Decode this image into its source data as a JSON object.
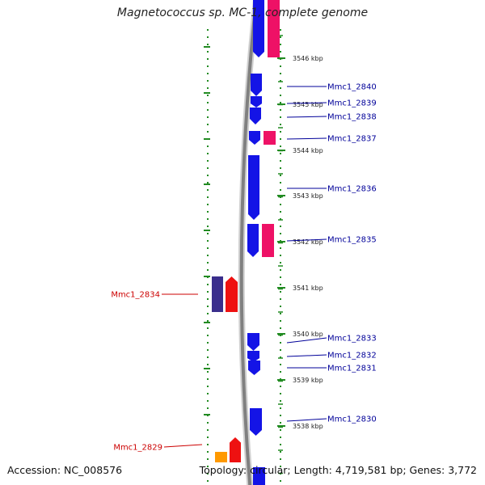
{
  "title": "Magnetococcus sp. MC-1, complete genome",
  "accession": "Accession: NC_008576",
  "topology": "Topology: circular; Length: 4,719,581 bp; Genes: 3,772",
  "colors": {
    "backbone": "#808080",
    "tick": "#228b22",
    "forward_gene": "#1414e6",
    "reverse_gene": "#ee1166",
    "highlight_dark": "#3a2e8c",
    "highlight_red": "#ee1111",
    "orange_gene": "#ff9900",
    "label_blue": "#000099",
    "label_red": "#cc0000"
  },
  "kbp_labels": [
    "3546 kbp",
    "3545 kbp",
    "3544 kbp",
    "3543 kbp",
    "3542 kbp",
    "3541 kbp",
    "3540 kbp",
    "3539 kbp",
    "3538 kbp"
  ],
  "genes_right": [
    {
      "id": "Mmc1_2840"
    },
    {
      "id": "Mmc1_2839"
    },
    {
      "id": "Mmc1_2838"
    },
    {
      "id": "Mmc1_2837"
    },
    {
      "id": "Mmc1_2836"
    },
    {
      "id": "Mmc1_2835"
    },
    {
      "id": "Mmc1_2833"
    },
    {
      "id": "Mmc1_2832"
    },
    {
      "id": "Mmc1_2831"
    },
    {
      "id": "Mmc1_2830"
    }
  ],
  "genes_left": [
    {
      "id": "Mmc1_2834"
    },
    {
      "id": "Mmc1_2829"
    }
  ]
}
